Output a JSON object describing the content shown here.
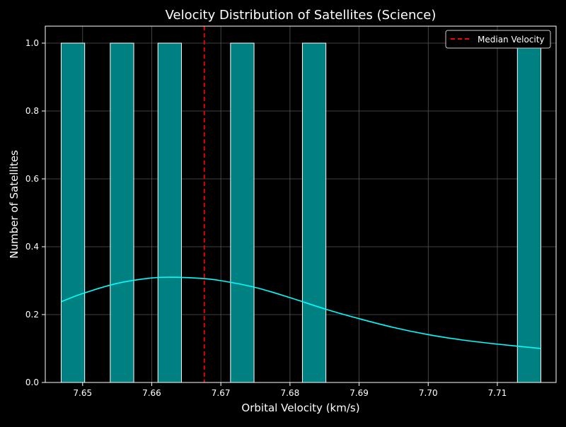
{
  "chart_data": {
    "type": "bar",
    "title": "Velocity Distribution of Satellites (Science)",
    "xlabel": "Orbital Velocity (km/s)",
    "ylabel": "Number of Satellites",
    "xlim": [
      7.6446,
      7.7185
    ],
    "ylim": [
      0,
      1.05
    ],
    "x_ticks": [
      7.65,
      7.66,
      7.67,
      7.68,
      7.69,
      7.7,
      7.71
    ],
    "x_tick_labels": [
      "7.65",
      "7.66",
      "7.67",
      "7.68",
      "7.69",
      "7.70",
      "7.71"
    ],
    "y_ticks": [
      0.0,
      0.2,
      0.4,
      0.6,
      0.8,
      1.0
    ],
    "y_tick_labels": [
      "0.0",
      "0.2",
      "0.4",
      "0.6",
      "0.8",
      "1.0"
    ],
    "bars": [
      {
        "x0": 7.6469,
        "x1": 7.6503,
        "value": 1
      },
      {
        "x0": 7.654,
        "x1": 7.6574,
        "value": 1
      },
      {
        "x0": 7.6609,
        "x1": 7.6643,
        "value": 1
      },
      {
        "x0": 7.6714,
        "x1": 7.6748,
        "value": 1
      },
      {
        "x0": 7.6818,
        "x1": 7.6852,
        "value": 1
      },
      {
        "x0": 7.7129,
        "x1": 7.7163,
        "value": 1
      }
    ],
    "kde": {
      "x": [
        7.6469,
        7.65,
        7.655,
        7.66,
        7.6635,
        7.667,
        7.67,
        7.675,
        7.68,
        7.685,
        7.69,
        7.695,
        7.7,
        7.705,
        7.71,
        7.7163
      ],
      "y": [
        0.238,
        0.262,
        0.292,
        0.308,
        0.31,
        0.307,
        0.3,
        0.28,
        0.25,
        0.217,
        0.188,
        0.162,
        0.141,
        0.125,
        0.113,
        0.1
      ]
    },
    "median": {
      "name": "Median Velocity",
      "value": 7.6676
    },
    "legend": {
      "placement": "top-right",
      "entries": [
        "Median Velocity"
      ]
    },
    "grid": true,
    "colors": {
      "background": "#000000",
      "bar_fill": "#008080",
      "bar_edge": "#ffffff",
      "kde": "#00ffff",
      "median": "#ff0000",
      "grid": "#555555",
      "axis": "#ffffff",
      "text": "#ffffff"
    }
  }
}
